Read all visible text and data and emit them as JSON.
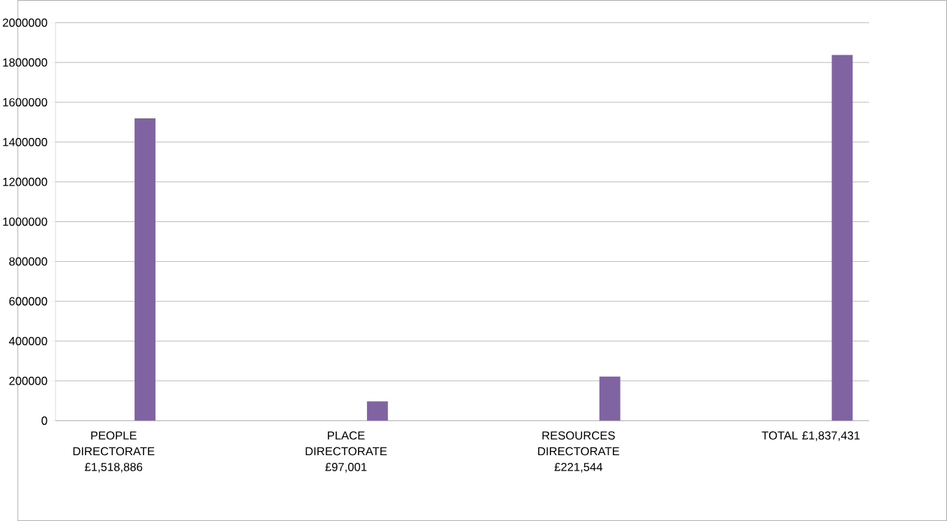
{
  "chart_data": {
    "type": "bar",
    "categories": [
      "PEOPLE DIRECTORATE £1,518,886",
      null,
      "PLACE DIRECTORATE £97,001",
      null,
      "RESOURCES DIRECTORATE £221,544",
      null,
      "TOTAL £1,837,431"
    ],
    "values": [
      1518886,
      null,
      97001,
      null,
      221544,
      null,
      1837431
    ],
    "color": "#8064a2",
    "ylim": [
      0,
      2000000
    ],
    "yticks": [
      0,
      200000,
      400000,
      600000,
      800000,
      1000000,
      1200000,
      1400000,
      1600000,
      1800000,
      2000000
    ],
    "grid": "y"
  }
}
